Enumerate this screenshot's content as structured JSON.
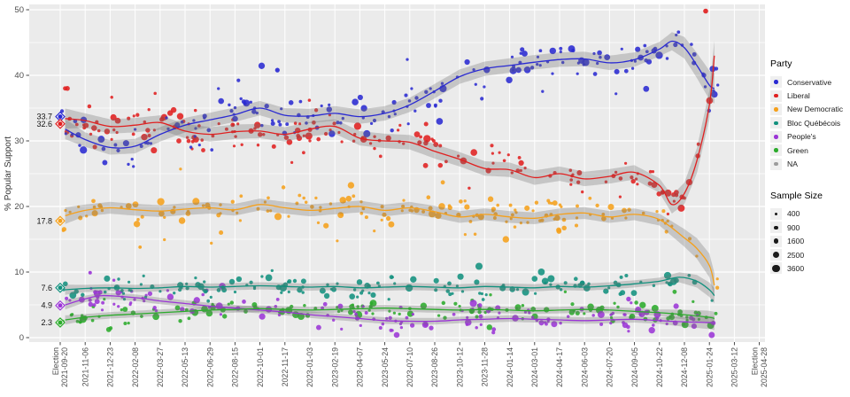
{
  "chart_data": {
    "type": "scatter",
    "title": "",
    "ylabel": "% Popular Support",
    "ylim": [
      0,
      50
    ],
    "y_major_ticks": [
      0,
      10,
      20,
      30,
      40,
      50
    ],
    "y_minor_ticks": [
      5,
      15,
      25,
      35,
      45
    ],
    "grid": "on",
    "panel_bg": "#ebebeb",
    "grid_color": "#ffffff",
    "election_word": "Election",
    "x_ticks": [
      {
        "label": "2021-09-20",
        "election": true
      },
      {
        "label": "2021-11-06"
      },
      {
        "label": "2021-12-23"
      },
      {
        "label": "2022-02-08"
      },
      {
        "label": "2022-03-27"
      },
      {
        "label": "2022-05-13"
      },
      {
        "label": "2022-06-29"
      },
      {
        "label": "2022-08-15"
      },
      {
        "label": "2022-10-01"
      },
      {
        "label": "2022-11-17"
      },
      {
        "label": "2023-01-03"
      },
      {
        "label": "2023-02-19"
      },
      {
        "label": "2023-04-07"
      },
      {
        "label": "2023-05-24"
      },
      {
        "label": "2023-07-10"
      },
      {
        "label": "2023-08-26"
      },
      {
        "label": "2023-10-12"
      },
      {
        "label": "2023-11-28"
      },
      {
        "label": "2024-01-14"
      },
      {
        "label": "2024-03-01"
      },
      {
        "label": "2024-04-17"
      },
      {
        "label": "2024-06-03"
      },
      {
        "label": "2024-07-20"
      },
      {
        "label": "2024-09-05"
      },
      {
        "label": "2024-10-22"
      },
      {
        "label": "2024-12-08"
      },
      {
        "label": "2025-01-24"
      },
      {
        "label": "2025-03-12"
      },
      {
        "label": "2025-04-28",
        "election": true
      }
    ],
    "series": [
      {
        "name": "Conservative",
        "color": "#2a2ad2",
        "scatter_sd": 1.7,
        "n_points": 185,
        "ci_halfwidth": 1.1,
        "trend": [
          [
            0.2,
            31.8
          ],
          [
            1,
            30.2
          ],
          [
            2,
            29.0
          ],
          [
            3,
            29.2
          ],
          [
            4,
            31.0
          ],
          [
            5,
            32.4
          ],
          [
            6,
            33.2
          ],
          [
            7,
            34.0
          ],
          [
            8,
            35.0
          ],
          [
            9,
            33.9
          ],
          [
            10,
            33.8
          ],
          [
            11,
            34.2
          ],
          [
            12,
            33.7
          ],
          [
            13,
            34.2
          ],
          [
            14,
            35.5
          ],
          [
            15,
            37.6
          ],
          [
            16,
            39.8
          ],
          [
            17,
            41.0
          ],
          [
            18,
            41.5
          ],
          [
            19,
            42.0
          ],
          [
            20,
            42.4
          ],
          [
            21,
            42.5
          ],
          [
            22,
            41.9
          ],
          [
            23,
            42.4
          ],
          [
            24,
            44.0
          ],
          [
            24.5,
            45.2
          ],
          [
            25,
            44.2
          ],
          [
            25.5,
            41.5
          ],
          [
            26,
            38.5
          ],
          [
            26.2,
            38.0
          ]
        ]
      },
      {
        "name": "Liberal",
        "color": "#e02020",
        "scatter_sd": 1.6,
        "n_points": 185,
        "ci_halfwidth": 1.1,
        "trend": [
          [
            0.2,
            33.4
          ],
          [
            1,
            33.1
          ],
          [
            2,
            32.2
          ],
          [
            3,
            32.4
          ],
          [
            4,
            32.8
          ],
          [
            5,
            31.5
          ],
          [
            6,
            31.0
          ],
          [
            7,
            31.4
          ],
          [
            8,
            31.5
          ],
          [
            9,
            31.0
          ],
          [
            10,
            31.8
          ],
          [
            11,
            32.2
          ],
          [
            12,
            30.4
          ],
          [
            13,
            30.0
          ],
          [
            14,
            29.8
          ],
          [
            15,
            28.4
          ],
          [
            16,
            27.2
          ],
          [
            17,
            25.8
          ],
          [
            18,
            25.6
          ],
          [
            19,
            24.4
          ],
          [
            20,
            25.0
          ],
          [
            21,
            24.2
          ],
          [
            22,
            24.6
          ],
          [
            23,
            25.2
          ],
          [
            24,
            23.2
          ],
          [
            24.5,
            20.3
          ],
          [
            25,
            22.0
          ],
          [
            25.5,
            27.0
          ],
          [
            26,
            35.5
          ],
          [
            26.2,
            43.0
          ]
        ]
      },
      {
        "name": "New Democratic",
        "color": "#f5a01b",
        "scatter_sd": 1.3,
        "n_points": 170,
        "ci_halfwidth": 0.9,
        "trend": [
          [
            0.2,
            18.6
          ],
          [
            1,
            19.4
          ],
          [
            2,
            19.8
          ],
          [
            3,
            19.5
          ],
          [
            4,
            19.3
          ],
          [
            5,
            19.6
          ],
          [
            6,
            19.8
          ],
          [
            7,
            19.5
          ],
          [
            8,
            20.3
          ],
          [
            9,
            19.8
          ],
          [
            10,
            19.4
          ],
          [
            11,
            19.7
          ],
          [
            12,
            20.0
          ],
          [
            13,
            19.4
          ],
          [
            14,
            19.8
          ],
          [
            15,
            19.2
          ],
          [
            16,
            18.4
          ],
          [
            17,
            18.8
          ],
          [
            18,
            18.4
          ],
          [
            19,
            18.2
          ],
          [
            20,
            18.8
          ],
          [
            21,
            19.0
          ],
          [
            22,
            18.4
          ],
          [
            23,
            18.8
          ],
          [
            24,
            18.0
          ],
          [
            25,
            15.2
          ],
          [
            25.5,
            13.6
          ],
          [
            26,
            11.0
          ],
          [
            26.2,
            8.0
          ]
        ]
      },
      {
        "name": "Bloc Québécois",
        "color": "#12917e",
        "scatter_sd": 0.9,
        "n_points": 145,
        "ci_halfwidth": 0.55,
        "trend": [
          [
            0.2,
            7.3
          ],
          [
            1,
            7.5
          ],
          [
            2,
            7.6
          ],
          [
            3,
            7.5
          ],
          [
            4,
            7.6
          ],
          [
            5,
            7.8
          ],
          [
            6,
            7.7
          ],
          [
            7,
            7.8
          ],
          [
            8,
            7.9
          ],
          [
            9,
            7.8
          ],
          [
            10,
            7.7
          ],
          [
            11,
            7.8
          ],
          [
            12,
            7.6
          ],
          [
            13,
            7.7
          ],
          [
            14,
            7.8
          ],
          [
            15,
            7.7
          ],
          [
            16,
            7.6
          ],
          [
            17,
            7.8
          ],
          [
            18,
            7.7
          ],
          [
            19,
            7.6
          ],
          [
            20,
            7.8
          ],
          [
            21,
            7.7
          ],
          [
            22,
            7.9
          ],
          [
            23,
            8.2
          ],
          [
            24,
            8.6
          ],
          [
            24.8,
            9.2
          ],
          [
            25.5,
            8.6
          ],
          [
            26,
            7.3
          ],
          [
            26.2,
            6.4
          ]
        ]
      },
      {
        "name": "People's",
        "color": "#9b35d6",
        "scatter_sd": 1.0,
        "n_points": 145,
        "ci_halfwidth": 0.5,
        "trend": [
          [
            0.2,
            5.0
          ],
          [
            1,
            5.9
          ],
          [
            1.7,
            6.4
          ],
          [
            3,
            6.1
          ],
          [
            4,
            5.6
          ],
          [
            5,
            5.2
          ],
          [
            6,
            4.8
          ],
          [
            7,
            4.5
          ],
          [
            8,
            4.2
          ],
          [
            9,
            3.9
          ],
          [
            10,
            3.5
          ],
          [
            11,
            3.2
          ],
          [
            12,
            2.9
          ],
          [
            13,
            2.6
          ],
          [
            14,
            2.5
          ],
          [
            15,
            2.5
          ],
          [
            16,
            2.7
          ],
          [
            17,
            2.8
          ],
          [
            18,
            2.9
          ],
          [
            19,
            2.8
          ],
          [
            20,
            2.7
          ],
          [
            21,
            2.6
          ],
          [
            22,
            2.7
          ],
          [
            23,
            2.8
          ],
          [
            24,
            2.6
          ],
          [
            25,
            2.4
          ],
          [
            26,
            2.3
          ],
          [
            26.2,
            2.2
          ]
        ]
      },
      {
        "name": "Green",
        "color": "#2bab2b",
        "scatter_sd": 0.8,
        "n_points": 145,
        "ci_halfwidth": 0.5,
        "trend": [
          [
            0.2,
            2.7
          ],
          [
            1,
            3.1
          ],
          [
            2,
            3.4
          ],
          [
            3,
            3.6
          ],
          [
            4,
            3.8
          ],
          [
            5,
            4.0
          ],
          [
            6,
            4.2
          ],
          [
            7,
            4.3
          ],
          [
            8,
            4.4
          ],
          [
            9,
            4.3
          ],
          [
            10,
            4.2
          ],
          [
            11,
            4.3
          ],
          [
            12,
            4.4
          ],
          [
            13,
            4.5
          ],
          [
            14,
            4.4
          ],
          [
            15,
            4.3
          ],
          [
            16,
            4.2
          ],
          [
            17,
            4.3
          ],
          [
            18,
            4.2
          ],
          [
            19,
            4.1
          ],
          [
            20,
            4.2
          ],
          [
            21,
            4.3
          ],
          [
            22,
            4.2
          ],
          [
            23,
            4.0
          ],
          [
            24,
            3.8
          ],
          [
            25,
            3.5
          ],
          [
            26,
            3.1
          ],
          [
            26.2,
            2.9
          ]
        ]
      }
    ],
    "election_2021": {
      "tick_index": 0,
      "results": [
        {
          "party": "Conservative",
          "value": 33.7
        },
        {
          "party": "Liberal",
          "value": 32.6
        },
        {
          "party": "New Democratic",
          "value": 17.8
        },
        {
          "party": "Bloc Québécois",
          "value": 7.6
        },
        {
          "party": "People's",
          "value": 4.9
        },
        {
          "party": "Green",
          "value": 2.3
        }
      ]
    },
    "outliers": [
      {
        "party": "Liberal",
        "x": 25.85,
        "value": 49.8,
        "r": 2.8
      },
      {
        "party": "Conservative",
        "x": 8.7,
        "value": 40.8,
        "r": 2.6
      },
      {
        "party": "People's",
        "x": 1.2,
        "value": 9.9,
        "r": 2.0
      },
      {
        "party": "New Democratic",
        "x": 3.2,
        "value": 13.8,
        "r": 1.9
      }
    ],
    "ribbon_color": "#6e6e6e",
    "na_color": "#9b9b9b",
    "legend": {
      "party_title": "Party",
      "items": [
        {
          "label": "Conservative",
          "color": "#2a2ad2"
        },
        {
          "label": "Liberal",
          "color": "#e02020"
        },
        {
          "label": "New Democratic",
          "color": "#f5a01b"
        },
        {
          "label": "Bloc Québécois",
          "color": "#12917e"
        },
        {
          "label": "People's",
          "color": "#9b35d6"
        },
        {
          "label": "Green",
          "color": "#2bab2b"
        },
        {
          "label": "NA",
          "color": "#9b9b9b"
        }
      ],
      "size_title": "Sample Size",
      "sizes": [
        400,
        900,
        1600,
        2500,
        3600
      ]
    }
  }
}
